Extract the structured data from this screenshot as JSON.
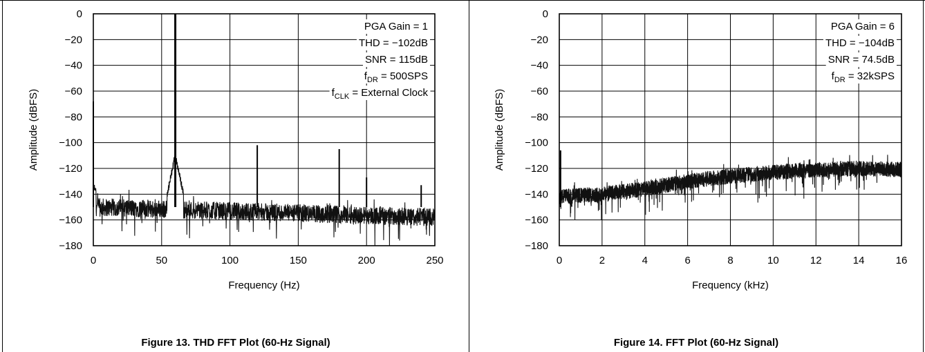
{
  "figures": [
    {
      "caption": "Figure 13. THD FFT Plot (60-Hz Signal)",
      "annotations": [
        {
          "main": "PGA Gain = 1"
        },
        {
          "main": "THD = −102dB"
        },
        {
          "main": "SNR = 115dB"
        },
        {
          "main": "f",
          "sub": "DR",
          "rest": " = 500SPS"
        },
        {
          "main": "f",
          "sub": "CLK",
          "rest": " = External Clock"
        }
      ]
    },
    {
      "caption": "Figure 14. FFT Plot (60-Hz Signal)",
      "annotations": [
        {
          "main": "PGA Gain = 6"
        },
        {
          "main": "THD = −104dB"
        },
        {
          "main": "SNR = 74.5dB"
        },
        {
          "main": "f",
          "sub": "DR",
          "rest": " = 32kSPS"
        }
      ]
    }
  ],
  "chart_data": [
    {
      "type": "line",
      "xlabel": "Frequency (Hz)",
      "ylabel": "Amplitude (dBFS)",
      "xlim": [
        0,
        250
      ],
      "ylim": [
        -180,
        0
      ],
      "x_ticks": [
        0,
        50,
        100,
        150,
        200,
        250
      ],
      "x_tick_labels": [
        "0",
        "50",
        "100",
        "150",
        "200",
        "250"
      ],
      "y_ticks": [
        0,
        -20,
        -40,
        -60,
        -80,
        -100,
        -120,
        -140,
        -160,
        -180
      ],
      "y_tick_labels": [
        "0",
        "−20",
        "−40",
        "−60",
        "−80",
        "−100",
        "−120",
        "−140",
        "−160",
        "−180"
      ],
      "grid": true,
      "noise_floor": {
        "x_range": [
          0,
          250
        ],
        "level_low_freq": -150,
        "level_high_freq": -158,
        "spread": 14
      },
      "peaks": [
        {
          "x": 0,
          "y": -68
        },
        {
          "x": 60,
          "y": 0
        },
        {
          "x": 120,
          "y": -102
        },
        {
          "x": 180,
          "y": -105
        },
        {
          "x": 200,
          "y": -127
        },
        {
          "x": 240,
          "y": -133
        }
      ]
    },
    {
      "type": "line",
      "xlabel": "Frequency (kHz)",
      "ylabel": "Amplitude (dBFS)",
      "xlim": [
        0,
        16
      ],
      "ylim": [
        -180,
        0
      ],
      "x_ticks": [
        0,
        2,
        4,
        6,
        8,
        10,
        12,
        14,
        16
      ],
      "x_tick_labels": [
        "0",
        "2",
        "4",
        "6",
        "8",
        "10",
        "12",
        "14",
        "16"
      ],
      "y_ticks": [
        0,
        -20,
        -40,
        -60,
        -80,
        -100,
        -120,
        -140,
        -160,
        -180
      ],
      "y_tick_labels": [
        "0",
        "−20",
        "−40",
        "−60",
        "−80",
        "−100",
        "−120",
        "−140",
        "−160",
        "−180"
      ],
      "grid": true,
      "noise_floor": {
        "x": [
          0,
          2,
          4,
          6,
          8,
          10,
          12,
          14,
          16
        ],
        "center": [
          -142,
          -140,
          -136,
          -130,
          -126,
          -123,
          -121,
          -120,
          -121
        ],
        "spread": 12
      },
      "peaks": [
        {
          "x": 0.06,
          "y": -106
        }
      ]
    }
  ]
}
